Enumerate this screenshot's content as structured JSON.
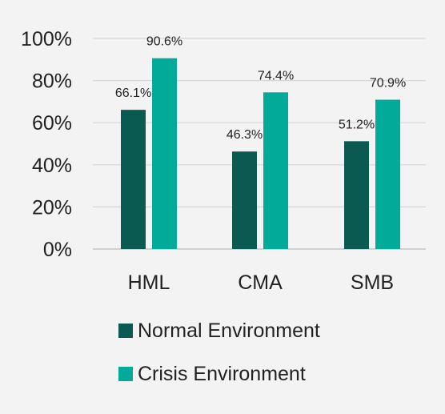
{
  "chart_data": {
    "type": "bar",
    "categories": [
      "HML",
      "CMA",
      "SMB"
    ],
    "series": [
      {
        "name": "Normal Environment",
        "color": "#0a5a52",
        "values": [
          66.1,
          46.3,
          51.2
        ],
        "labels": [
          "66.1%",
          "46.3%",
          "51.2%"
        ]
      },
      {
        "name": "Crisis Environment",
        "color": "#02aa9a",
        "values": [
          90.6,
          74.4,
          70.9
        ],
        "labels": [
          "90.6%",
          "74.4%",
          "70.9%"
        ]
      }
    ],
    "ylim": [
      0,
      100
    ],
    "yticks": [
      0,
      20,
      40,
      60,
      80,
      100
    ],
    "ytick_labels": [
      "0%",
      "20%",
      "40%",
      "60%",
      "80%",
      "100%"
    ],
    "grid": true,
    "legend_position": "bottom",
    "title": "",
    "xlabel": "",
    "ylabel": ""
  }
}
